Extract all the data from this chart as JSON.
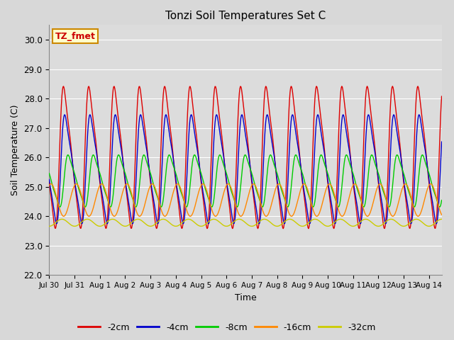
{
  "title": "Tonzi Soil Temperatures Set C",
  "xlabel": "Time",
  "ylabel": "Soil Temperature (C)",
  "ylim": [
    22.0,
    30.5
  ],
  "annotation": "TZ_fmet",
  "annotation_color": "#cc0000",
  "annotation_bg": "#ffffcc",
  "annotation_border": "#cc8800",
  "series": [
    {
      "label": "-2cm",
      "color": "#dd0000",
      "amplitude": 3.0,
      "mean": 26.0,
      "phase": 0.0,
      "sharpness": 3.0
    },
    {
      "label": "-4cm",
      "color": "#0000cc",
      "amplitude": 2.3,
      "mean": 25.6,
      "phase": 0.05,
      "sharpness": 2.5
    },
    {
      "label": "-8cm",
      "color": "#00cc00",
      "amplitude": 1.1,
      "mean": 25.2,
      "phase": 0.18,
      "sharpness": 1.5
    },
    {
      "label": "-16cm",
      "color": "#ff8800",
      "amplitude": 0.55,
      "mean": 24.55,
      "phase": 0.42,
      "sharpness": 1.0
    },
    {
      "label": "-32cm",
      "color": "#cccc00",
      "amplitude": 0.12,
      "mean": 23.78,
      "phase": 0.85,
      "sharpness": 1.0
    }
  ],
  "xtick_labels": [
    "Jul 30",
    "Jul 31",
    "Aug 1",
    "Aug 2",
    "Aug 3",
    "Aug 4",
    "Aug 5",
    "Aug 6",
    "Aug 7",
    "Aug 8",
    "Aug 9",
    "Aug 10",
    "Aug 11",
    "Aug 12",
    "Aug 13",
    "Aug 14"
  ],
  "n_days": 15.5,
  "samples_per_day": 48,
  "bg_color": "#dcdcdc",
  "grid_color": "#ffffff",
  "fig_bg": "#d8d8d8"
}
